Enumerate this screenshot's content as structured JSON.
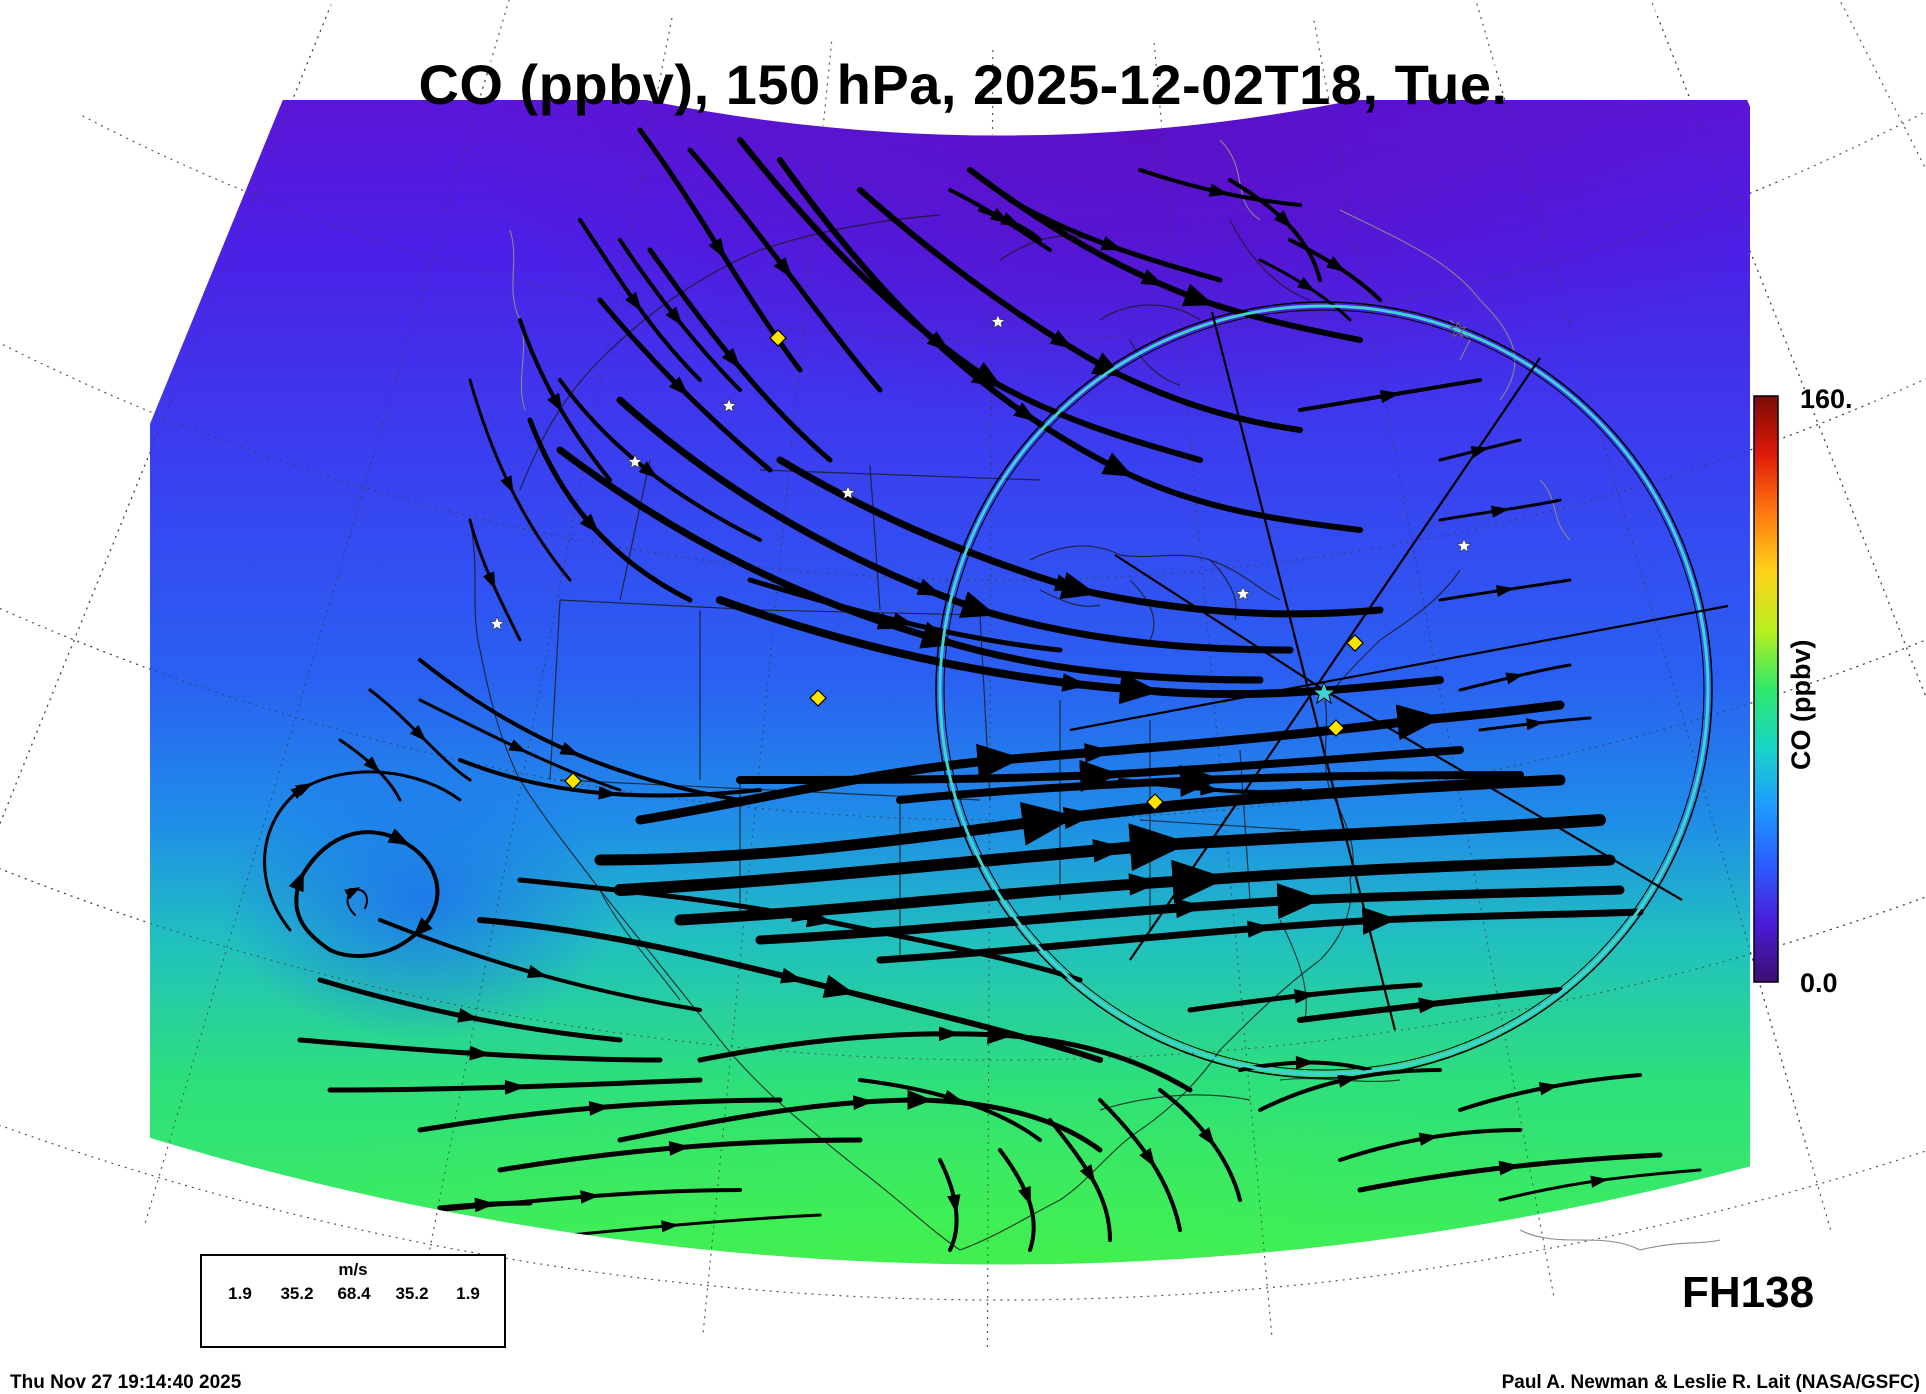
{
  "title": "CO (ppbv), 150 hPa, 2025-12-02T18, Tue.",
  "forecast_hour": "FH138",
  "timestamp": "Thu Nov 27 19:14:40 2025",
  "credit": "Paul A. Newman & Leslie R. Lait (NASA/GSFC)",
  "colorbar": {
    "label": "CO (ppbv)",
    "max_label": "160.",
    "min_label": "0.0",
    "range": [
      0,
      160
    ],
    "colors": [
      "#3b0f70",
      "#4a1bd8",
      "#2a5cff",
      "#1e9bff",
      "#19d4c8",
      "#2ee86a",
      "#b8ef1e",
      "#ffd21a",
      "#ff7a10",
      "#e01a0a",
      "#7a0a04"
    ]
  },
  "wind_legend": {
    "unit": "m/s",
    "values": [
      "1.9",
      "35.2",
      "68.4",
      "35.2",
      "1.9"
    ]
  },
  "markers": {
    "station_color": "#ffe400",
    "star_color": "#ffffff",
    "ring_color": "#3fd3d3"
  }
}
